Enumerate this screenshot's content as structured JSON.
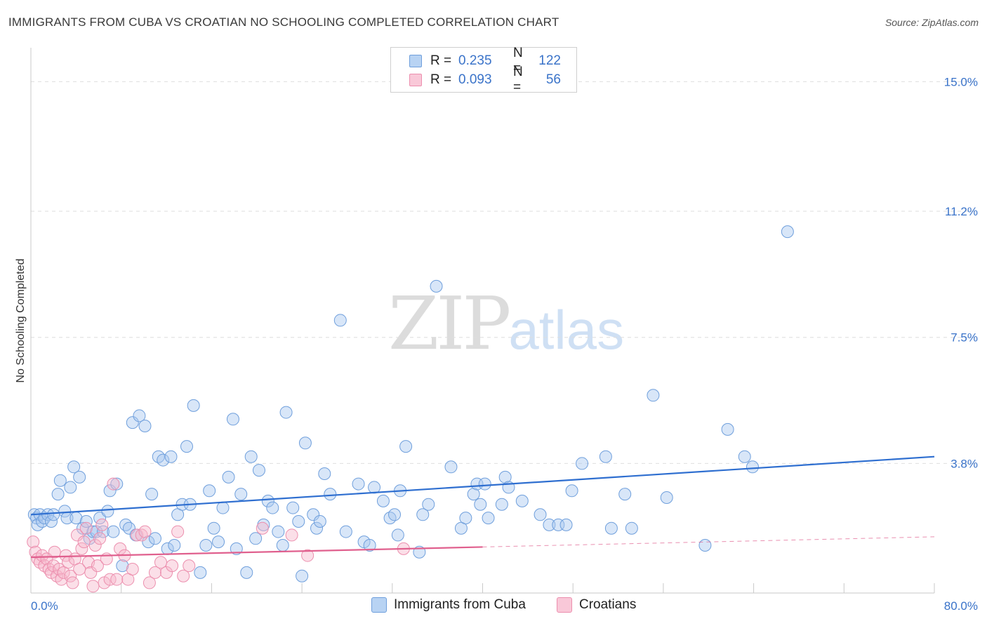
{
  "header": {
    "title": "IMMIGRANTS FROM CUBA VS CROATIAN NO SCHOOLING COMPLETED CORRELATION CHART",
    "source": "Source: ZipAtlas.com"
  },
  "legend": {
    "rows": [
      {
        "r_label": "R =",
        "r_value": "0.235",
        "n_label": "N =",
        "n_value": "122"
      },
      {
        "r_label": "R =",
        "r_value": "0.093",
        "n_label": "N =",
        "n_value": "56"
      }
    ]
  },
  "bottom_legend": {
    "cuba": "Immigrants from Cuba",
    "croatians": "Croatians"
  },
  "watermark": {
    "zip": "ZIP",
    "atlas": "atlas"
  },
  "axes": {
    "ylabel": "No Schooling Completed",
    "x_min_label": "0.0%",
    "x_max_label": "80.0%",
    "y_ticks": [
      "3.8%",
      "7.5%",
      "11.2%",
      "15.0%"
    ]
  },
  "colors": {
    "cuba_fill": "#a9c8f0",
    "cuba_stroke": "#6f9fdc",
    "cuba_line": "#2f6fd0",
    "croatian_fill": "#f6b8cc",
    "croatian_stroke": "#ec8fae",
    "croatian_line": "#e0608e",
    "tick_text": "#3a73c9"
  },
  "chart_data": {
    "type": "scatter",
    "xlim": [
      0,
      80
    ],
    "ylim": [
      0,
      15.0
    ],
    "y_ticks": [
      3.8,
      7.5,
      11.2,
      15.0
    ],
    "grid": true,
    "series": [
      {
        "name": "Immigrants from Cuba",
        "trend": {
          "x0": 0,
          "y0": 2.3,
          "x1": 80,
          "y1": 4.0
        },
        "points": [
          [
            0.3,
            2.3
          ],
          [
            0.5,
            2.2
          ],
          [
            0.6,
            2.0
          ],
          [
            0.8,
            2.3
          ],
          [
            1.0,
            2.1
          ],
          [
            1.2,
            2.2
          ],
          [
            1.5,
            2.3
          ],
          [
            1.8,
            2.1
          ],
          [
            2.0,
            2.3
          ],
          [
            2.4,
            2.9
          ],
          [
            2.6,
            3.3
          ],
          [
            3.0,
            2.4
          ],
          [
            3.2,
            2.2
          ],
          [
            3.5,
            3.1
          ],
          [
            3.8,
            3.7
          ],
          [
            4.0,
            2.2
          ],
          [
            4.3,
            3.4
          ],
          [
            4.6,
            1.9
          ],
          [
            4.9,
            2.1
          ],
          [
            5.2,
            1.6
          ],
          [
            5.5,
            1.8
          ],
          [
            5.8,
            1.8
          ],
          [
            6.1,
            2.2
          ],
          [
            6.4,
            1.8
          ],
          [
            6.8,
            2.4
          ],
          [
            7.0,
            3.0
          ],
          [
            7.3,
            1.8
          ],
          [
            7.6,
            3.2
          ],
          [
            8.1,
            0.8
          ],
          [
            8.4,
            2.0
          ],
          [
            8.7,
            1.9
          ],
          [
            9.0,
            5.0
          ],
          [
            9.3,
            1.7
          ],
          [
            9.6,
            5.2
          ],
          [
            10.1,
            4.9
          ],
          [
            10.4,
            1.5
          ],
          [
            10.7,
            2.9
          ],
          [
            11.0,
            1.6
          ],
          [
            11.3,
            4.0
          ],
          [
            11.7,
            3.9
          ],
          [
            12.1,
            1.3
          ],
          [
            12.4,
            4.0
          ],
          [
            12.7,
            1.4
          ],
          [
            13.0,
            2.3
          ],
          [
            13.4,
            2.6
          ],
          [
            13.8,
            4.3
          ],
          [
            14.1,
            2.6
          ],
          [
            14.4,
            5.5
          ],
          [
            15.0,
            0.6
          ],
          [
            15.5,
            1.4
          ],
          [
            15.8,
            3.0
          ],
          [
            16.2,
            1.9
          ],
          [
            16.6,
            1.5
          ],
          [
            17.0,
            2.5
          ],
          [
            17.5,
            3.4
          ],
          [
            17.9,
            5.1
          ],
          [
            18.2,
            1.3
          ],
          [
            18.6,
            2.9
          ],
          [
            19.1,
            0.6
          ],
          [
            19.5,
            4.0
          ],
          [
            19.9,
            1.6
          ],
          [
            20.2,
            3.6
          ],
          [
            20.6,
            2.0
          ],
          [
            21.0,
            2.7
          ],
          [
            21.4,
            2.5
          ],
          [
            21.9,
            1.8
          ],
          [
            22.3,
            1.4
          ],
          [
            22.6,
            5.3
          ],
          [
            23.2,
            2.5
          ],
          [
            23.7,
            2.1
          ],
          [
            24.0,
            0.5
          ],
          [
            24.3,
            4.4
          ],
          [
            25.0,
            2.3
          ],
          [
            25.3,
            1.9
          ],
          [
            25.6,
            2.1
          ],
          [
            26.0,
            3.5
          ],
          [
            26.5,
            2.9
          ],
          [
            27.4,
            8.0
          ],
          [
            27.9,
            1.8
          ],
          [
            29.0,
            3.2
          ],
          [
            29.5,
            1.5
          ],
          [
            30.0,
            1.4
          ],
          [
            30.4,
            3.1
          ],
          [
            31.2,
            2.7
          ],
          [
            31.8,
            2.2
          ],
          [
            32.2,
            2.3
          ],
          [
            32.5,
            1.7
          ],
          [
            32.7,
            3.0
          ],
          [
            33.2,
            4.3
          ],
          [
            34.4,
            1.2
          ],
          [
            34.7,
            2.3
          ],
          [
            35.2,
            2.6
          ],
          [
            37.2,
            3.7
          ],
          [
            38.1,
            1.9
          ],
          [
            38.5,
            2.2
          ],
          [
            39.2,
            2.9
          ],
          [
            39.5,
            3.2
          ],
          [
            39.8,
            2.6
          ],
          [
            40.5,
            2.2
          ],
          [
            41.7,
            2.6
          ],
          [
            42.0,
            3.4
          ],
          [
            42.3,
            3.1
          ],
          [
            43.5,
            2.7
          ],
          [
            45.1,
            2.3
          ],
          [
            45.9,
            2.0
          ],
          [
            46.7,
            2.0
          ],
          [
            47.4,
            2.0
          ],
          [
            48.8,
            3.8
          ],
          [
            50.9,
            4.0
          ],
          [
            51.4,
            1.9
          ],
          [
            52.6,
            2.9
          ],
          [
            53.2,
            1.9
          ],
          [
            56.3,
            2.8
          ],
          [
            59.7,
            1.4
          ],
          [
            61.7,
            4.8
          ],
          [
            63.2,
            4.0
          ],
          [
            63.9,
            3.7
          ],
          [
            67.0,
            10.6
          ],
          [
            55.1,
            5.8
          ],
          [
            47.9,
            3.0
          ],
          [
            35.9,
            9.0
          ],
          [
            40.2,
            3.2
          ]
        ]
      },
      {
        "name": "Croatians",
        "trend": {
          "x0": 0,
          "y0": 1.05,
          "x1": 40,
          "y1": 1.35,
          "dashed_to": {
            "x": 80,
            "y": 1.65
          }
        },
        "points": [
          [
            0.2,
            1.5
          ],
          [
            0.4,
            1.2
          ],
          [
            0.6,
            1.0
          ],
          [
            0.8,
            0.9
          ],
          [
            1.0,
            1.1
          ],
          [
            1.2,
            0.8
          ],
          [
            1.4,
            1.0
          ],
          [
            1.6,
            0.7
          ],
          [
            1.8,
            0.6
          ],
          [
            2.0,
            0.8
          ],
          [
            2.1,
            1.2
          ],
          [
            2.3,
            0.5
          ],
          [
            2.5,
            0.7
          ],
          [
            2.7,
            0.4
          ],
          [
            2.9,
            0.6
          ],
          [
            3.1,
            1.1
          ],
          [
            3.3,
            0.9
          ],
          [
            3.5,
            0.5
          ],
          [
            3.7,
            0.3
          ],
          [
            3.9,
            1.0
          ],
          [
            4.1,
            1.7
          ],
          [
            4.3,
            0.7
          ],
          [
            4.5,
            1.3
          ],
          [
            4.7,
            1.5
          ],
          [
            4.9,
            1.9
          ],
          [
            5.1,
            0.9
          ],
          [
            5.3,
            0.6
          ],
          [
            5.5,
            0.2
          ],
          [
            5.7,
            1.4
          ],
          [
            5.9,
            0.8
          ],
          [
            6.1,
            1.6
          ],
          [
            6.3,
            2.0
          ],
          [
            6.5,
            0.3
          ],
          [
            6.7,
            1.0
          ],
          [
            7.0,
            0.4
          ],
          [
            7.3,
            3.2
          ],
          [
            7.6,
            0.4
          ],
          [
            7.9,
            1.3
          ],
          [
            8.3,
            1.1
          ],
          [
            8.6,
            0.4
          ],
          [
            9.0,
            0.7
          ],
          [
            9.4,
            1.7
          ],
          [
            9.8,
            1.7
          ],
          [
            10.1,
            1.8
          ],
          [
            10.5,
            0.3
          ],
          [
            11.0,
            0.6
          ],
          [
            11.5,
            0.9
          ],
          [
            12.0,
            0.6
          ],
          [
            12.5,
            0.8
          ],
          [
            13.0,
            1.8
          ],
          [
            13.5,
            0.5
          ],
          [
            14.0,
            0.8
          ],
          [
            20.5,
            1.9
          ],
          [
            23.1,
            1.7
          ],
          [
            24.5,
            1.1
          ],
          [
            33.0,
            1.3
          ]
        ]
      }
    ]
  }
}
